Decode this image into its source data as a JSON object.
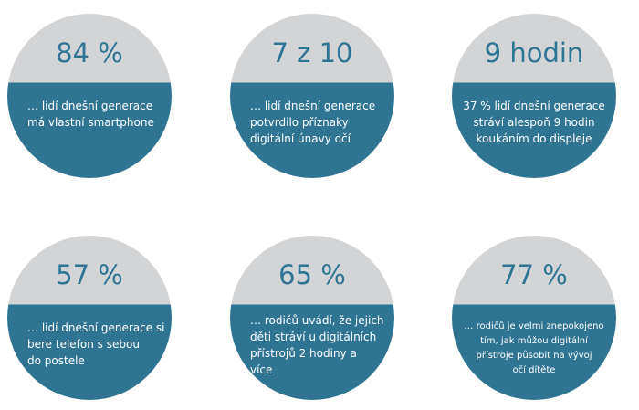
{
  "items": [
    {
      "stat": "84 %",
      "description": [
        "… lidí dnešní generace",
        "má vlastní smartphone"
      ]
    },
    {
      "stat": "7 z 10",
      "description": [
        "… lidí dnešní generace",
        "potvrdilo příznaky",
        "digitální únavy očí"
      ]
    },
    {
      "stat": "9 hodin",
      "description": [
        "37 % lidí dnešní generace",
        "stráví alespoň 9 hodin",
        "koukáním do displeje"
      ]
    },
    {
      "stat": "57 %",
      "description": [
        "… lidí dnešní generace si",
        "bere telefon s sebou",
        "do postele"
      ]
    },
    {
      "stat": "65 %",
      "description": [
        "… rodičů uvádí, že jejich",
        "děti stráví u digitálních",
        "přístrojů 2 hodiny a",
        "více"
      ]
    },
    {
      "stat": "77 %",
      "description": [
        "… rodičů je velmi znepokojeno",
        "tím, jak můžou digitální",
        "přístroje působit na vývoj",
        "očí dítěte"
      ]
    }
  ]
}
